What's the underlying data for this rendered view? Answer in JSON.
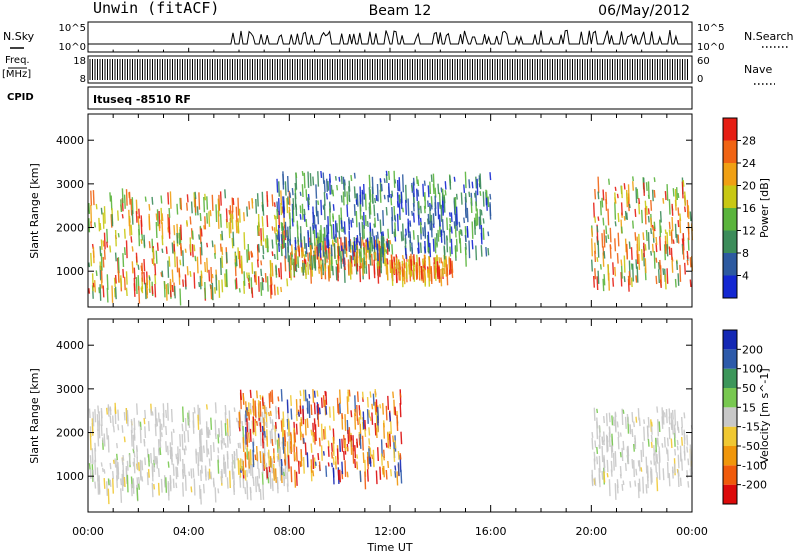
{
  "header": {
    "radar": "Unwin (fitACF)",
    "beam": "Beam 12",
    "date": "06/May/2012"
  },
  "strips": {
    "nsky_label": "N.Sky",
    "nsky_top": "10^5",
    "nsky_bottom": "10^0",
    "nsearch_label": "N.Search",
    "nsearch_top": "10^5",
    "nsearch_bottom": "10^0",
    "freq_label": "Freq.",
    "freq_unit": "[MHz]",
    "freq_top": "18",
    "freq_bottom": "8",
    "nave_label": "Nave",
    "nave_top": "60",
    "nave_bottom": "0",
    "cpid_label": "CPID",
    "cpid_text": "Ituseq -8510 RF"
  },
  "chart_data": [
    {
      "type": "heatmap",
      "panel": "power",
      "ylabel": "Slant Range [km]",
      "yticks": [
        "1000",
        "2000",
        "3000",
        "4000"
      ],
      "ylim": [
        180,
        4600
      ],
      "xlim": [
        0,
        24
      ],
      "colorbar": {
        "label": "Power [dB]",
        "ticks": [
          "4",
          "8",
          "12",
          "16",
          "20",
          "24",
          "28"
        ],
        "colors": [
          "#1428d2",
          "#2d5aa0",
          "#3c8c5a",
          "#5ab43c",
          "#c8c814",
          "#f0a014",
          "#f06414",
          "#e61e14"
        ]
      },
      "regions": [
        {
          "t0": 0.0,
          "t1": 8.0,
          "r0": 600,
          "r1": 2900,
          "level": "high",
          "note": "band"
        },
        {
          "t0": 8.0,
          "t1": 12.0,
          "r0": 1100,
          "r1": 1800,
          "level": "high"
        },
        {
          "t0": 12.0,
          "t1": 14.5,
          "r0": 1000,
          "r1": 1400,
          "level": "medium"
        },
        {
          "t0": 7.5,
          "t1": 16.0,
          "r0": 1500,
          "r1": 3300,
          "level": "low"
        },
        {
          "t0": 20.0,
          "t1": 24.0,
          "r0": 800,
          "r1": 3200,
          "level": "high"
        }
      ]
    },
    {
      "type": "heatmap",
      "panel": "velocity",
      "ylabel": "Slant Range [km]",
      "yticks": [
        "1000",
        "2000",
        "3000",
        "4000"
      ],
      "ylim": [
        180,
        4600
      ],
      "xlim": [
        0,
        24
      ],
      "colorbar": {
        "label": "Velocity [m s^-1]",
        "ticks": [
          "-200",
          "-100",
          "-50",
          "-15",
          "15",
          "50",
          "100",
          "200"
        ],
        "colors": [
          "#dc0a0a",
          "#f05a0a",
          "#f0960a",
          "#f0c832",
          "#c8c8c8",
          "#78c850",
          "#3c965a",
          "#2d5aaa",
          "#1428b4"
        ]
      },
      "regions": [
        {
          "t0": 0.0,
          "t1": 8.0,
          "r0": 700,
          "r1": 2700,
          "level": "ground"
        },
        {
          "t0": 6.0,
          "t1": 12.5,
          "r0": 1100,
          "r1": 3000,
          "level": "negative"
        },
        {
          "t0": 20.0,
          "t1": 24.0,
          "r0": 800,
          "r1": 2600,
          "level": "ground"
        }
      ]
    }
  ],
  "xaxis": {
    "ticks": [
      "00:00",
      "04:00",
      "08:00",
      "12:00",
      "16:00",
      "20:00",
      "00:00"
    ],
    "label": "Time UT"
  }
}
